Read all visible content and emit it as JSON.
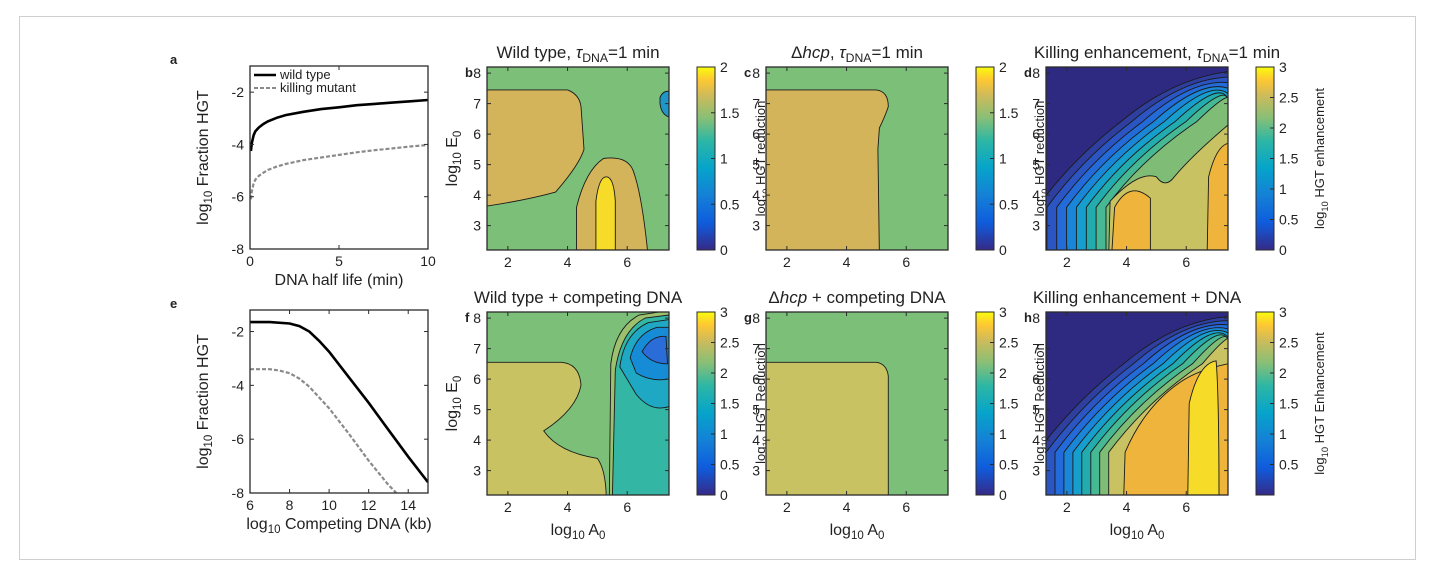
{
  "figure": {
    "panels": [
      {
        "letter": "a",
        "title": "",
        "xlabel": "DNA half life (min)",
        "ylabel": "log10 Fraction HGT",
        "cbar_label": ""
      },
      {
        "letter": "b",
        "title": "Wild type, τDNA=1 min",
        "xlabel": "",
        "ylabel": "log10 E0",
        "cbar_label": "log10 HGT reduction"
      },
      {
        "letter": "c",
        "title": "Δhcp, τDNA=1 min",
        "xlabel": "",
        "ylabel": "",
        "cbar_label": "log10 HGT reduction"
      },
      {
        "letter": "d",
        "title": "Killing enhancement, τDNA=1 min",
        "xlabel": "",
        "ylabel": "",
        "cbar_label": "log10 HGT enhancement"
      },
      {
        "letter": "e",
        "title": "",
        "xlabel": "log10 Competing DNA (kb)",
        "ylabel": "log10 Fraction HGT",
        "cbar_label": ""
      },
      {
        "letter": "f",
        "title": "Wild type + competing DNA",
        "xlabel": "log10 A0",
        "ylabel": "log10 E0",
        "cbar_label": "log10 HGT Reduction"
      },
      {
        "letter": "g",
        "title": "Δhcp + competing DNA",
        "xlabel": "log10 A0",
        "ylabel": "",
        "cbar_label": "log10 HGT Reduction"
      },
      {
        "letter": "h",
        "title": "Killing enhancement + DNA",
        "xlabel": "log10 A0",
        "ylabel": "",
        "cbar_label": "log10 HGT Enhancement"
      }
    ]
  },
  "chart_data": [
    {
      "panel": "a",
      "type": "line",
      "xlabel": "DNA half life (min)",
      "ylabel": "log10 Fraction HGT",
      "xlim": [
        0,
        10
      ],
      "ylim": [
        -8,
        -1
      ],
      "xticks": [
        0,
        5,
        10
      ],
      "yticks": [
        -8,
        -6,
        -4,
        -2
      ],
      "legend": "top-left",
      "series": [
        {
          "name": "wild type",
          "style": "solid",
          "color": "#000000",
          "x": [
            0.05,
            0.1,
            0.2,
            0.3,
            0.5,
            0.75,
            1,
            1.5,
            2,
            3,
            4,
            5,
            6,
            7,
            8,
            9,
            10
          ],
          "y": [
            -4.25,
            -3.95,
            -3.65,
            -3.5,
            -3.35,
            -3.22,
            -3.12,
            -2.98,
            -2.88,
            -2.75,
            -2.65,
            -2.58,
            -2.5,
            -2.45,
            -2.4,
            -2.35,
            -2.3
          ]
        },
        {
          "name": "killing mutant",
          "style": "dashed",
          "color": "#8a8a8a",
          "x": [
            0.05,
            0.1,
            0.2,
            0.3,
            0.5,
            0.75,
            1,
            1.5,
            2,
            3,
            4,
            5,
            6,
            7,
            8,
            9,
            10
          ],
          "y": [
            -6.1,
            -5.8,
            -5.5,
            -5.35,
            -5.2,
            -5.08,
            -4.98,
            -4.85,
            -4.75,
            -4.6,
            -4.5,
            -4.4,
            -4.3,
            -4.22,
            -4.15,
            -4.08,
            -4.02
          ]
        }
      ]
    },
    {
      "panel": "b",
      "type": "heatmap",
      "title": "Wild type, τDNA=1 min",
      "ylabel": "log10 E0",
      "xlim": [
        1.3,
        7.4
      ],
      "ylim": [
        2.2,
        8.2
      ],
      "xticks": [
        2,
        4,
        6
      ],
      "yticks": [
        3,
        4,
        5,
        6,
        7,
        8
      ],
      "colorbar": {
        "label": "log10 HGT reduction",
        "range": [
          0,
          2
        ],
        "ticks": [
          0,
          0.5,
          1,
          1.5,
          2
        ]
      }
    },
    {
      "panel": "c",
      "type": "heatmap",
      "title": "Δhcp, τDNA=1 min",
      "xlim": [
        1.3,
        7.4
      ],
      "ylim": [
        2.2,
        8.2
      ],
      "xticks": [
        2,
        4,
        6
      ],
      "yticks": [
        3,
        4,
        5,
        6,
        7,
        8
      ],
      "colorbar": {
        "label": "log10 HGT reduction",
        "range": [
          0,
          2
        ],
        "ticks": [
          0,
          0.5,
          1,
          1.5,
          2
        ]
      }
    },
    {
      "panel": "d",
      "type": "heatmap",
      "title": "Killing enhancement, τDNA=1 min",
      "xlim": [
        1.3,
        7.4
      ],
      "ylim": [
        2.2,
        8.2
      ],
      "xticks": [
        2,
        4,
        6
      ],
      "yticks": [
        3,
        4,
        5,
        6,
        7,
        8
      ],
      "colorbar": {
        "label": "log10 HGT enhancement",
        "range": [
          0,
          3
        ],
        "ticks": [
          0,
          0.5,
          1,
          1.5,
          2,
          2.5,
          3
        ]
      }
    },
    {
      "panel": "e",
      "type": "line",
      "xlabel": "log10 Competing DNA (kb)",
      "ylabel": "log10 Fraction HGT",
      "xlim": [
        6,
        15
      ],
      "ylim": [
        -8,
        -1.2
      ],
      "xticks": [
        6,
        8,
        10,
        12,
        14
      ],
      "yticks": [
        -8,
        -6,
        -4,
        -2
      ],
      "series": [
        {
          "name": "wild type",
          "style": "solid",
          "color": "#000000",
          "x": [
            6,
            7,
            8,
            8.5,
            9,
            9.5,
            10,
            11,
            12,
            13,
            14,
            15
          ],
          "y": [
            -1.65,
            -1.65,
            -1.7,
            -1.8,
            -2.0,
            -2.35,
            -2.75,
            -3.7,
            -4.65,
            -5.65,
            -6.65,
            -7.6
          ]
        },
        {
          "name": "killing mutant",
          "style": "dashed",
          "color": "#8a8a8a",
          "x": [
            6,
            7,
            7.5,
            8,
            8.5,
            9,
            9.5,
            10,
            11,
            12,
            13,
            13.4
          ],
          "y": [
            -3.4,
            -3.4,
            -3.45,
            -3.55,
            -3.75,
            -4.05,
            -4.45,
            -4.85,
            -5.8,
            -6.8,
            -7.7,
            -8.0
          ]
        }
      ]
    },
    {
      "panel": "f",
      "type": "heatmap",
      "title": "Wild type + competing DNA",
      "xlabel": "log10 A0",
      "ylabel": "log10 E0",
      "xlim": [
        1.3,
        7.4
      ],
      "ylim": [
        2.2,
        8.2
      ],
      "xticks": [
        2,
        4,
        6
      ],
      "yticks": [
        3,
        4,
        5,
        6,
        7,
        8
      ],
      "colorbar": {
        "label": "log10 HGT Reduction",
        "range": [
          0,
          3
        ],
        "ticks": [
          0,
          0.5,
          1,
          1.5,
          2,
          2.5,
          3
        ]
      }
    },
    {
      "panel": "g",
      "type": "heatmap",
      "title": "Δhcp + competing DNA",
      "xlabel": "log10 A0",
      "xlim": [
        1.3,
        7.4
      ],
      "ylim": [
        2.2,
        8.2
      ],
      "xticks": [
        2,
        4,
        6
      ],
      "yticks": [
        3,
        4,
        5,
        6,
        7,
        8
      ],
      "colorbar": {
        "label": "log10 HGT Reduction",
        "range": [
          0,
          3
        ],
        "ticks": [
          0,
          0.5,
          1,
          1.5,
          2,
          2.5,
          3
        ]
      }
    },
    {
      "panel": "h",
      "type": "heatmap",
      "title": "Killing enhancement + DNA",
      "xlabel": "log10 A0",
      "xlim": [
        1.3,
        7.4
      ],
      "ylim": [
        2.2,
        8.2
      ],
      "xticks": [
        2,
        4,
        6
      ],
      "yticks": [
        3,
        4,
        5,
        6,
        7,
        8
      ],
      "colorbar": {
        "label": "log10 HGT Enhancement",
        "range": [
          0,
          3
        ],
        "ticks": [
          0.5,
          1,
          1.5,
          2,
          2.5,
          3
        ]
      }
    }
  ],
  "colors": {
    "green": "#7cbf79",
    "tan": "#d4b45a",
    "olive": "#c8c262",
    "orange": "#eeb43c",
    "yellow": "#f6db28",
    "navy": "#2e2a82",
    "blue1": "#2f4fb5",
    "blue2": "#2d6fd8",
    "teal1": "#1f96c8",
    "teal2": "#22aaa7",
    "cyan": "#34b6a5"
  }
}
